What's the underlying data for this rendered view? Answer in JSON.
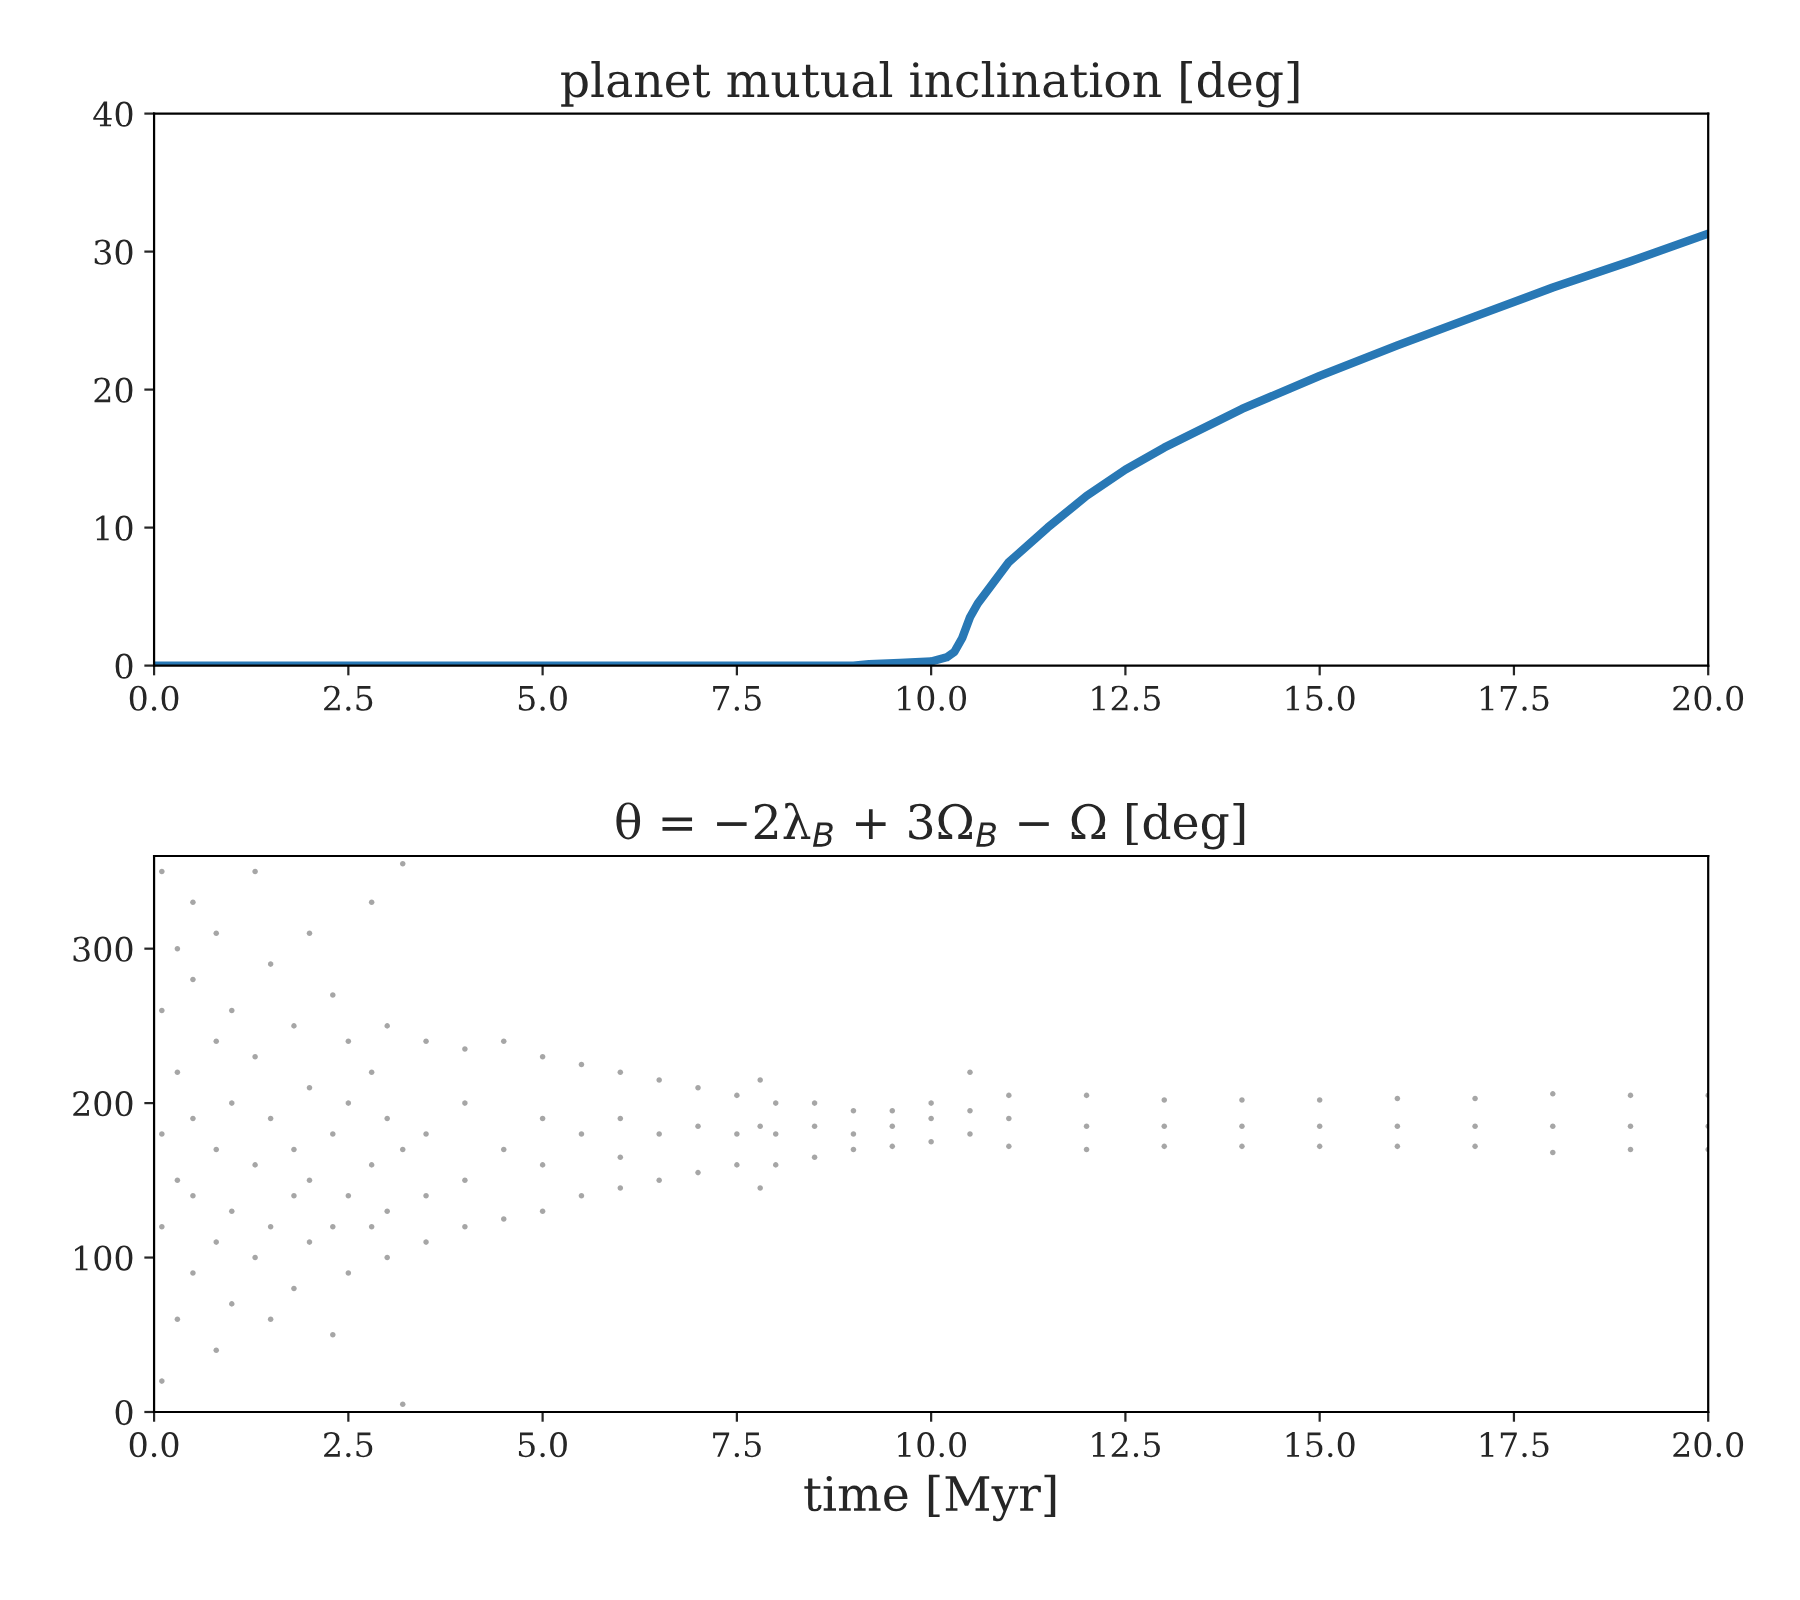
{
  "chart_data": [
    {
      "type": "line",
      "title": "planet mutual inclination [deg]",
      "series": [
        {
          "color": "#2878b5",
          "x": [
            0,
            2,
            4,
            6,
            8,
            9,
            9.2,
            9.6,
            10,
            10.2,
            10.3,
            10.4,
            10.5,
            10.6,
            10.8,
            11,
            11.5,
            12,
            12.5,
            13,
            14,
            15,
            16,
            17,
            18,
            19,
            20
          ],
          "values": [
            0,
            0,
            0,
            0,
            0,
            0,
            0.1,
            0.2,
            0.3,
            0.6,
            1,
            2,
            3.5,
            4.5,
            6,
            7.5,
            10,
            12.3,
            14.2,
            15.8,
            18.6,
            21,
            23.2,
            25.3,
            27.4,
            29.3,
            31.3
          ]
        }
      ],
      "xlim": [
        0,
        20
      ],
      "ylim": [
        0,
        40
      ],
      "xticks": [
        {
          "value": 0,
          "label": "0.0"
        },
        2.5,
        {
          "value": 5,
          "label": "5.0"
        },
        7.5,
        {
          "value": 10,
          "label": "10.0"
        },
        12.5,
        {
          "value": 15,
          "label": "15.0"
        },
        17.5,
        {
          "value": 20,
          "label": "20.0"
        }
      ],
      "yticks": [
        0,
        10,
        20,
        30,
        40
      ],
      "grid": false,
      "legend": false
    },
    {
      "type": "scatter",
      "title": "θ = −2λ$_{B}$ + 3Ω$_{B}$ − Ω [deg]",
      "xlabel": "time [Myr]",
      "series": [
        {
          "color": "#000000",
          "x": [
            0.1,
            0.1,
            0.1,
            0.1,
            0.1,
            0.3,
            0.3,
            0.3,
            0.3,
            0.5,
            0.5,
            0.5,
            0.5,
            0.5,
            0.8,
            0.8,
            0.8,
            0.8,
            0.8,
            1.0,
            1.0,
            1.0,
            1.0,
            1.3,
            1.3,
            1.3,
            1.3,
            1.5,
            1.5,
            1.5,
            1.5,
            1.8,
            1.8,
            1.8,
            1.8,
            2.0,
            2.0,
            2.0,
            2.0,
            2.3,
            2.3,
            2.3,
            2.3,
            2.5,
            2.5,
            2.5,
            2.5,
            2.8,
            2.8,
            2.8,
            2.8,
            3.0,
            3.0,
            3.0,
            3.0,
            3.2,
            3.2,
            3.2,
            3.5,
            3.5,
            3.5,
            3.5,
            4.0,
            4.0,
            4.0,
            4.0,
            4.5,
            4.5,
            4.5,
            5.0,
            5.0,
            5.0,
            5.0,
            5.5,
            5.5,
            5.5,
            6.0,
            6.0,
            6.0,
            6.0,
            6.5,
            6.5,
            6.5,
            7.0,
            7.0,
            7.0,
            7.5,
            7.5,
            7.5,
            7.8,
            7.8,
            7.8,
            8.0,
            8.0,
            8.0,
            8.5,
            8.5,
            8.5,
            9.0,
            9.0,
            9.0,
            9.5,
            9.5,
            9.5,
            10.0,
            10.0,
            10.0,
            10.5,
            10.5,
            10.5,
            11,
            11,
            11,
            12,
            12,
            12,
            13,
            13,
            13,
            14,
            14,
            14,
            15,
            15,
            15,
            16,
            16,
            16,
            17,
            17,
            17,
            18,
            18,
            18,
            19,
            19,
            19,
            20,
            20,
            20
          ],
          "values": [
            20,
            350,
            180,
            120,
            260,
            60,
            300,
            150,
            220,
            90,
            280,
            190,
            140,
            330,
            40,
            240,
            170,
            110,
            310,
            70,
            260,
            200,
            130,
            100,
            350,
            230,
            160,
            60,
            290,
            190,
            120,
            80,
            250,
            170,
            140,
            110,
            310,
            210,
            150,
            50,
            270,
            180,
            120,
            90,
            240,
            200,
            140,
            120,
            330,
            160,
            220,
            100,
            250,
            190,
            130,
            5,
            355,
            170,
            110,
            240,
            180,
            140,
            120,
            235,
            200,
            150,
            125,
            240,
            170,
            130,
            230,
            190,
            160,
            140,
            225,
            180,
            145,
            220,
            190,
            165,
            150,
            215,
            180,
            155,
            210,
            185,
            160,
            205,
            180,
            145,
            215,
            185,
            160,
            200,
            180,
            165,
            200,
            185,
            170,
            195,
            180,
            172,
            195,
            185,
            175,
            200,
            190,
            220,
            180,
            195,
            172,
            205,
            190,
            170,
            205,
            185,
            172,
            202,
            185,
            172,
            202,
            185,
            172,
            202,
            185,
            172,
            203,
            185,
            172,
            203,
            185,
            168,
            206,
            185,
            170,
            205,
            185,
            170,
            205,
            185
          ]
        }
      ],
      "xlim": [
        0,
        20
      ],
      "ylim": [
        0,
        360
      ],
      "xticks": [
        {
          "value": 0,
          "label": "0.0"
        },
        2.5,
        {
          "value": 5,
          "label": "5.0"
        },
        7.5,
        {
          "value": 10,
          "label": "10.0"
        },
        12.5,
        {
          "value": 15,
          "label": "15.0"
        },
        17.5,
        {
          "value": 20,
          "label": "20.0"
        }
      ],
      "yticks": [
        0,
        100,
        200,
        300
      ],
      "grid": false,
      "legend": false
    }
  ]
}
